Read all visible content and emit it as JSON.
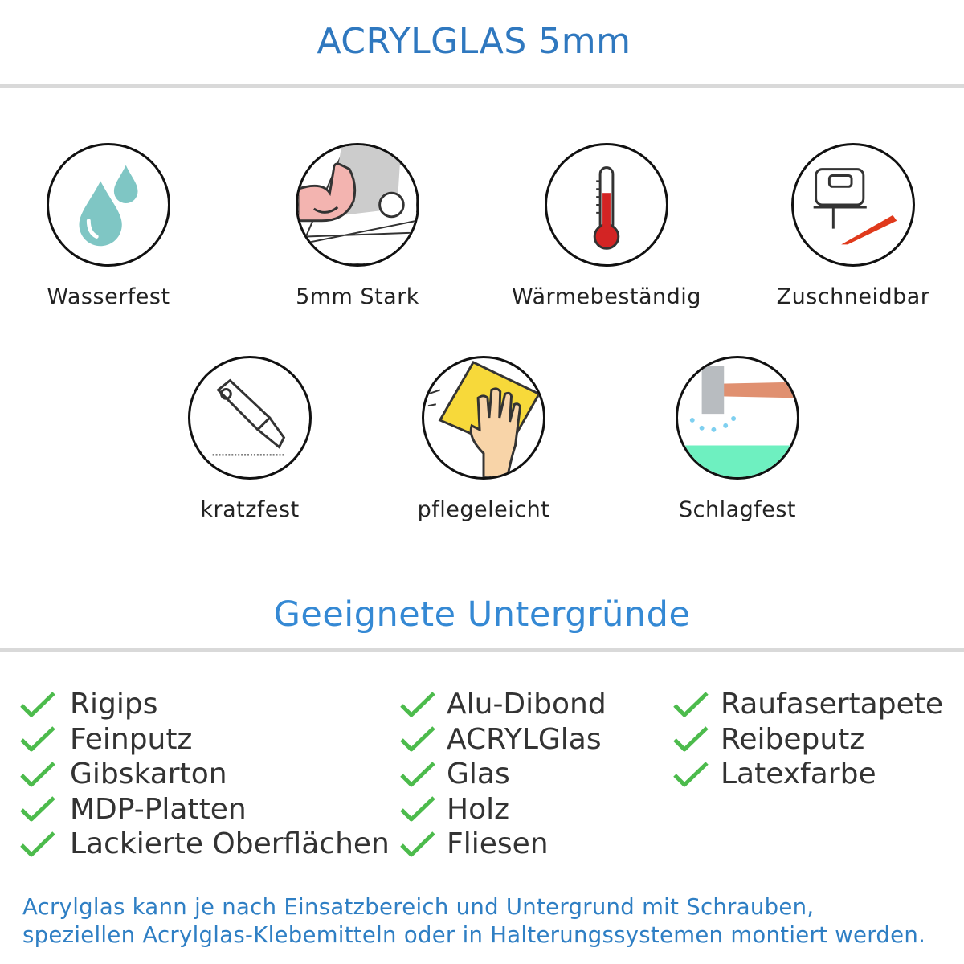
{
  "header": {
    "title": "ACRYLGLAS 5mm"
  },
  "features": [
    {
      "label": "Wasserfest",
      "icon": "water-drops-icon"
    },
    {
      "label": "5mm Stark",
      "icon": "strong-arm-icon"
    },
    {
      "label": "Wärmebeständig",
      "icon": "thermometer-icon"
    },
    {
      "label": "Zuschneidbar",
      "icon": "jigsaw-icon"
    },
    {
      "label": "kratzfest",
      "icon": "cutter-knife-icon"
    },
    {
      "label": "pflegeleicht",
      "icon": "cleaning-sponge-hand-icon"
    },
    {
      "label": "Schlagfest",
      "icon": "hammer-icon"
    }
  ],
  "surfaces": {
    "title": "Geeignete Untergründe",
    "columns": [
      [
        "Rigips",
        "Feinputz",
        "Gibskarton",
        "MDP-Platten",
        "Lackierte Oberflächen"
      ],
      [
        "Alu-Dibond",
        "ACRYLGlas",
        "Glas",
        "Holz",
        "Fliesen"
      ],
      [
        "Raufasertapete",
        "Reibeputz",
        "Latexfarbe"
      ]
    ]
  },
  "footer": {
    "line1": "Acrylglas kann je nach Einsatzbereich und Untergrund mit Schrauben,",
    "line2": "speziellen Acrylglas-Klebemitteln oder in Halterungssystemen montiert werden."
  },
  "colors": {
    "title": "#2f78bf",
    "subtitle": "#3589d4",
    "check": "#4cbb4c",
    "footer": "#2f7fc4"
  }
}
